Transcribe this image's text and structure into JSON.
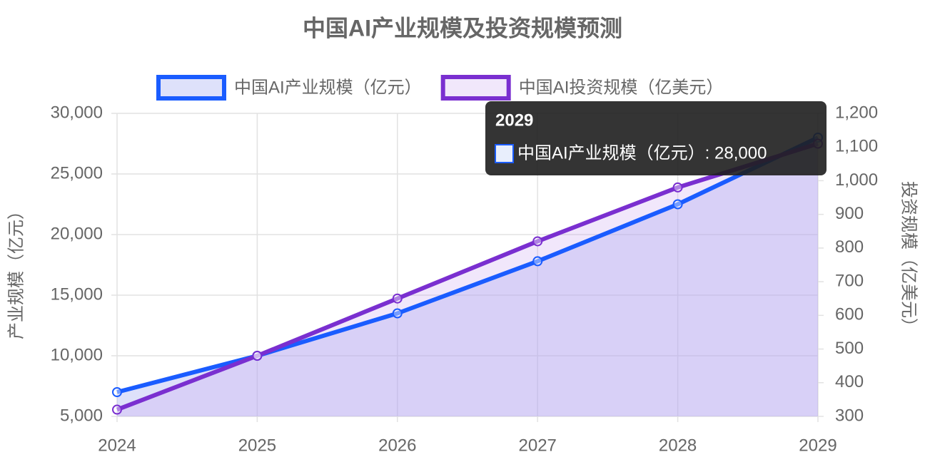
{
  "chart_data": {
    "type": "line",
    "title": "中国AI产业规模及投资规模预测",
    "categories": [
      "2024",
      "2025",
      "2026",
      "2027",
      "2028",
      "2029"
    ],
    "series": [
      {
        "name": "中国AI产业规模（亿元）",
        "color": "#1a5cff",
        "fill": "rgba(160,170,240,0.35)",
        "values": [
          7000,
          10000,
          13500,
          17800,
          22500,
          28000
        ]
      },
      {
        "name": "中国AI投资规模（亿美元）",
        "color": "#7a2fd0",
        "fill": "rgba(200,160,240,0.25)",
        "axis": "y2",
        "values": [
          320,
          480,
          650,
          820,
          980,
          1110
        ]
      }
    ],
    "ylabel": "产业规模（亿元）",
    "y2label": "投资规模（亿美元）",
    "ylim": [
      5000,
      30000
    ],
    "yticks": [
      {
        "value": 5000,
        "label": "5,000"
      },
      {
        "value": 10000,
        "label": "10,000"
      },
      {
        "value": 15000,
        "label": "15,000"
      },
      {
        "value": 20000,
        "label": "20,000"
      },
      {
        "value": 25000,
        "label": "25,000"
      },
      {
        "value": 30000,
        "label": "30,000"
      }
    ],
    "y2lim": [
      300,
      1200
    ],
    "y2ticks": [
      300,
      400,
      500,
      600,
      700,
      800,
      900,
      {
        "value": 1000,
        "label": "1,000"
      },
      {
        "value": 1100,
        "label": "1,100"
      },
      {
        "value": 1200,
        "label": "1,200"
      }
    ],
    "grid": true,
    "legend": "top",
    "tooltip": {
      "title": "2029",
      "label": "中国AI产业规模（亿元）: 28,000"
    }
  }
}
